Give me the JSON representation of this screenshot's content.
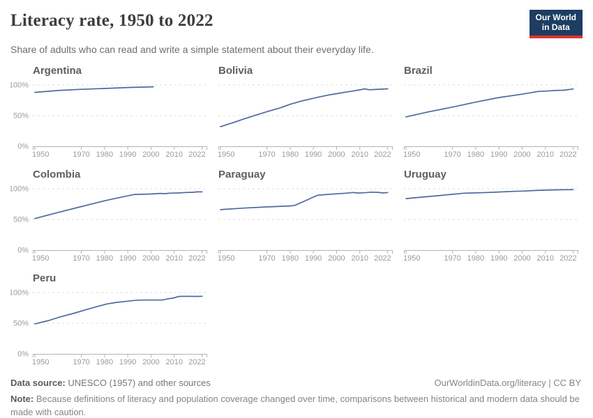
{
  "header": {
    "title": "Literacy rate, 1950 to 2022",
    "subtitle": "Share of adults who can read and write a simple statement about their everyday life.",
    "logo": {
      "line1": "Our World",
      "line2": "in Data",
      "bg_color": "#1d3d63",
      "accent_color": "#dc352c"
    }
  },
  "chart_data": {
    "type": "line",
    "title": "Literacy rate, 1950 to 2022",
    "ylabel": "",
    "xlabel": "",
    "ylim": [
      0,
      100
    ],
    "x_range": [
      1950,
      2023
    ],
    "x_ticks": [
      1950,
      1970,
      1980,
      1990,
      2000,
      2010,
      2022
    ],
    "y_tick_labels": [
      "0%",
      "50%",
      "100%"
    ],
    "grid": "horizontal dashed at 50% and 100%",
    "legend": "none",
    "line_color": "#4c6a9d",
    "series": [
      {
        "name": "Argentina",
        "show_y_axis": true,
        "points": [
          [
            1950,
            88
          ],
          [
            1960,
            91
          ],
          [
            1970,
            93
          ],
          [
            1980,
            94.3
          ],
          [
            1991,
            96
          ],
          [
            2001,
            97
          ]
        ]
      },
      {
        "name": "Bolivia",
        "show_y_axis": false,
        "points": [
          [
            1950,
            32
          ],
          [
            1955,
            38
          ],
          [
            1960,
            44.5
          ],
          [
            1965,
            50.5
          ],
          [
            1970,
            56.5
          ],
          [
            1976,
            63
          ],
          [
            1980,
            68.5
          ],
          [
            1985,
            74
          ],
          [
            1992,
            80
          ],
          [
            1997,
            84
          ],
          [
            2001,
            86.5
          ],
          [
            2006,
            89.5
          ],
          [
            2010,
            92
          ],
          [
            2012,
            93.8
          ],
          [
            2014,
            92.3
          ],
          [
            2016,
            92.6
          ],
          [
            2019,
            93.2
          ],
          [
            2022,
            93.8
          ]
        ]
      },
      {
        "name": "Brazil",
        "show_y_axis": false,
        "points": [
          [
            1950,
            48
          ],
          [
            1960,
            56.5
          ],
          [
            1970,
            64
          ],
          [
            1980,
            72
          ],
          [
            1990,
            79.5
          ],
          [
            2000,
            85
          ],
          [
            2007,
            89.5
          ],
          [
            2010,
            90
          ],
          [
            2014,
            91
          ],
          [
            2018,
            91.5
          ],
          [
            2022,
            93.5
          ]
        ]
      },
      {
        "name": "Colombia",
        "show_y_axis": true,
        "points": [
          [
            1950,
            51.5
          ],
          [
            1960,
            61.5
          ],
          [
            1970,
            71
          ],
          [
            1980,
            80.5
          ],
          [
            1985,
            84.5
          ],
          [
            1990,
            88.5
          ],
          [
            1993,
            90.8
          ],
          [
            1996,
            91
          ],
          [
            2000,
            91.5
          ],
          [
            2004,
            92.5
          ],
          [
            2006,
            92
          ],
          [
            2008,
            92.8
          ],
          [
            2012,
            93.3
          ],
          [
            2015,
            94
          ],
          [
            2018,
            94.3
          ],
          [
            2020,
            95
          ],
          [
            2022,
            95
          ]
        ]
      },
      {
        "name": "Paraguay",
        "show_y_axis": false,
        "points": [
          [
            1950,
            66
          ],
          [
            1960,
            68.5
          ],
          [
            1970,
            70.5
          ],
          [
            1980,
            72
          ],
          [
            1982,
            73
          ],
          [
            1986,
            79.5
          ],
          [
            1990,
            86.5
          ],
          [
            1992,
            89.5
          ],
          [
            1996,
            90.8
          ],
          [
            2000,
            91.8
          ],
          [
            2004,
            92.8
          ],
          [
            2007,
            94
          ],
          [
            2009,
            93.2
          ],
          [
            2012,
            93.5
          ],
          [
            2015,
            94.6
          ],
          [
            2018,
            94.2
          ],
          [
            2020,
            93.2
          ],
          [
            2022,
            94
          ]
        ]
      },
      {
        "name": "Uruguay",
        "show_y_axis": false,
        "points": [
          [
            1950,
            84
          ],
          [
            1957,
            86.5
          ],
          [
            1963,
            88.5
          ],
          [
            1970,
            91
          ],
          [
            1975,
            92.8
          ],
          [
            1980,
            93.3
          ],
          [
            1985,
            94
          ],
          [
            1990,
            94.8
          ],
          [
            1996,
            95.8
          ],
          [
            2000,
            96.3
          ],
          [
            2006,
            97.3
          ],
          [
            2010,
            97.8
          ],
          [
            2015,
            98.3
          ],
          [
            2022,
            98.6
          ]
        ]
      },
      {
        "name": "Peru",
        "show_y_axis": true,
        "points": [
          [
            1950,
            49
          ],
          [
            1956,
            54.5
          ],
          [
            1961,
            60.5
          ],
          [
            1967,
            66.5
          ],
          [
            1972,
            72
          ],
          [
            1977,
            77.5
          ],
          [
            1981,
            81.5
          ],
          [
            1985,
            84
          ],
          [
            1990,
            86
          ],
          [
            1993,
            87.3
          ],
          [
            1996,
            87.8
          ],
          [
            2000,
            87.8
          ],
          [
            2005,
            88
          ],
          [
            2007,
            89.5
          ],
          [
            2010,
            91.5
          ],
          [
            2012,
            93.8
          ],
          [
            2016,
            94
          ],
          [
            2020,
            93.8
          ],
          [
            2022,
            94
          ]
        ]
      }
    ]
  },
  "footer": {
    "datasource_label": "Data source:",
    "datasource_value": " UNESCO (1957) and other sources",
    "link": "OurWorldinData.org/literacy | CC BY",
    "note_label": "Note:",
    "note_value": " Because definitions of literacy and population coverage changed over time, comparisons between historical and modern data should be made with caution."
  }
}
